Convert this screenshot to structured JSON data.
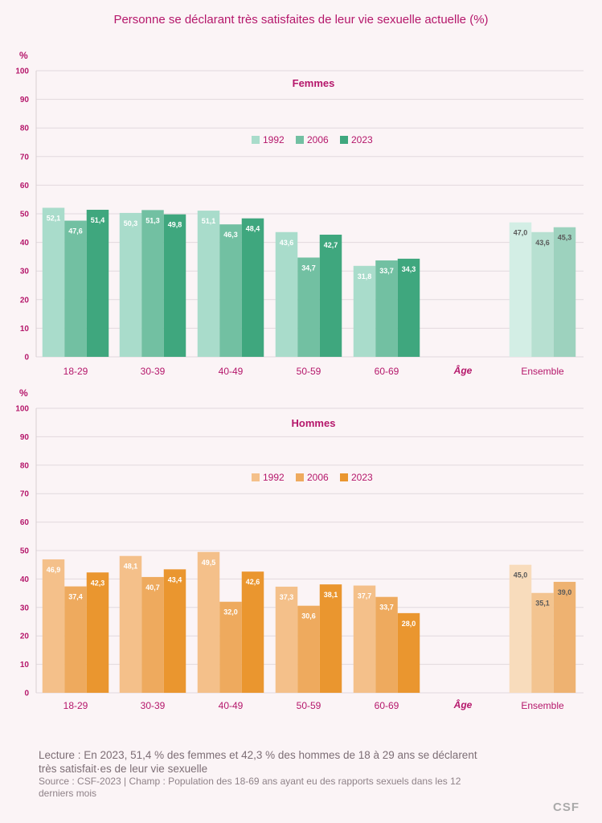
{
  "title": "Personne se déclarant très satisfaites de leur vie sexuelle actuelle (%)",
  "reading_note": "Lecture : En 2023, 51,4 % des femmes et 42,3 % des hommes de 18 à 29 ans se déclarent très satisfait·es de leur vie sexuelle",
  "source_note": "Source : CSF-2023 | Champ : Population des 18-69 ans ayant eu des rapports sexuels dans les 12 derniers mois",
  "logo": "CSF",
  "chart_data": [
    {
      "type": "bar",
      "title": "Femmes",
      "ylabel": "%",
      "xlabel": "Âge",
      "ylim": [
        0,
        100
      ],
      "yticks": [
        0,
        10,
        20,
        30,
        40,
        50,
        60,
        70,
        80,
        90,
        100
      ],
      "grid": true,
      "legend": "top-center",
      "categories": [
        "18-29",
        "30-39",
        "40-49",
        "50-59",
        "60-69",
        "Ensemble"
      ],
      "series": [
        {
          "name": "1992",
          "color": "#a9dccb",
          "values": [
            52.1,
            50.3,
            51.1,
            43.6,
            31.8,
            47.0
          ],
          "labels": [
            "52,1",
            "50,3",
            "51,1",
            "43,6",
            "31,8",
            "47,0"
          ]
        },
        {
          "name": "2006",
          "color": "#72c0a2",
          "values": [
            47.6,
            51.3,
            46.3,
            34.7,
            33.7,
            43.6
          ],
          "labels": [
            "47,6",
            "51,3",
            "46,3",
            "34,7",
            "33,7",
            "43,6"
          ]
        },
        {
          "name": "2023",
          "color": "#3fa77e",
          "values": [
            51.4,
            49.8,
            48.4,
            42.7,
            34.3,
            45.3
          ],
          "labels": [
            "51,4",
            "49,8",
            "48,4",
            "42,7",
            "34,3",
            "45,3"
          ]
        }
      ],
      "ensemble_colors": [
        "#d3eee5",
        "#b7e0d1",
        "#9dd2be"
      ]
    },
    {
      "type": "bar",
      "title": "Hommes",
      "ylabel": "%",
      "xlabel": "Âge",
      "ylim": [
        0,
        100
      ],
      "yticks": [
        0,
        10,
        20,
        30,
        40,
        50,
        60,
        70,
        80,
        90,
        100
      ],
      "grid": true,
      "legend": "top-center",
      "categories": [
        "18-29",
        "30-39",
        "40-49",
        "50-59",
        "60-69",
        "Ensemble"
      ],
      "series": [
        {
          "name": "1992",
          "color": "#f4c08a",
          "values": [
            46.9,
            48.1,
            49.5,
            37.3,
            37.7,
            45.0
          ],
          "labels": [
            "46,9",
            "48,1",
            "49,5",
            "37,3",
            "37,7",
            "45,0"
          ]
        },
        {
          "name": "2006",
          "color": "#eeaa5e",
          "values": [
            37.4,
            40.7,
            32.0,
            30.6,
            33.7,
            35.1
          ],
          "labels": [
            "37,4",
            "40,7",
            "32,0",
            "30,6",
            "33,7",
            "35,1"
          ]
        },
        {
          "name": "2023",
          "color": "#ea962f",
          "values": [
            42.3,
            43.4,
            42.6,
            38.1,
            28.0,
            39.0
          ],
          "labels": [
            "42,3",
            "43,4",
            "42,6",
            "38,1",
            "28,0",
            "39,0"
          ]
        }
      ],
      "ensemble_colors": [
        "#f8dcbc",
        "#f3c490",
        "#eeb271"
      ]
    }
  ]
}
